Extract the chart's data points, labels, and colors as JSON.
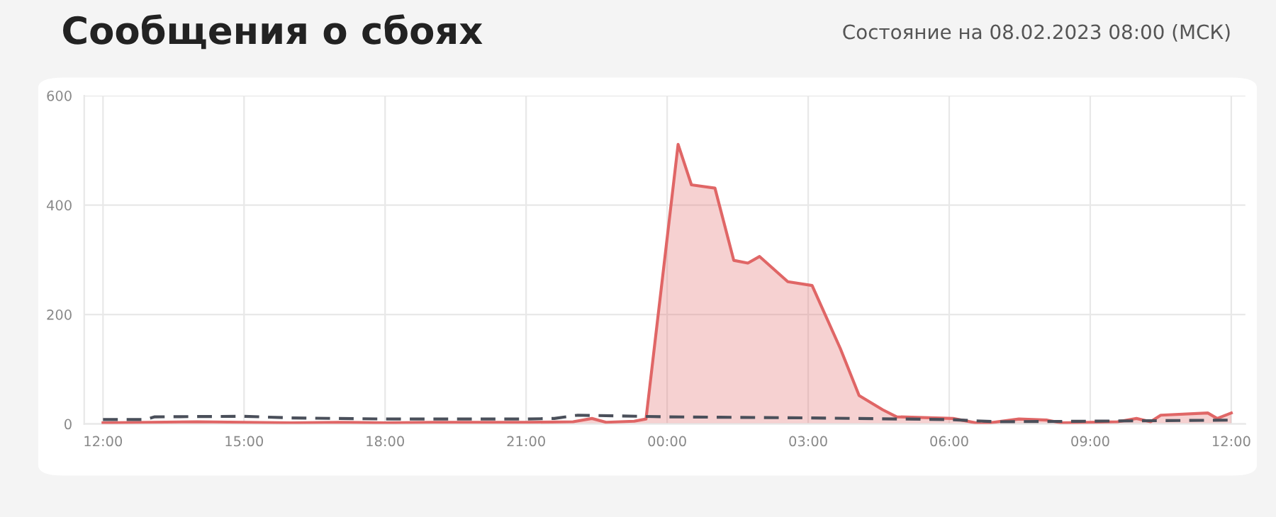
{
  "chart_data": {
    "type": "area",
    "title": "Сообщения о сбоях",
    "subtitle": "Состояние на 08.02.2023 08:00 (МСК)",
    "xlim": [
      "2023-02-07T11:36",
      "2023-02-08T12:18"
    ],
    "xticks": [
      {
        "value": "2023-02-07T12:00",
        "label": "12:00"
      },
      {
        "value": "2023-02-07T15:00",
        "label": "15:00"
      },
      {
        "value": "2023-02-07T18:00",
        "label": "18:00"
      },
      {
        "value": "2023-02-07T21:00",
        "label": "21:00"
      },
      {
        "value": "2023-02-08T00:00",
        "label": "00:00"
      },
      {
        "value": "2023-02-08T03:00",
        "label": "03:00"
      },
      {
        "value": "2023-02-08T06:00",
        "label": "06:00"
      },
      {
        "value": "2023-02-08T09:00",
        "label": "09:00"
      },
      {
        "value": "2023-02-08T12:00",
        "label": "12:00"
      }
    ],
    "ylim": [
      0,
      600
    ],
    "yticks": [
      0,
      200,
      400,
      600
    ],
    "grid": true,
    "series": [
      {
        "color": "#e06666",
        "line_style": "solid",
        "x": [
          "2023-02-07T12:00",
          "2023-02-07T13:00",
          "2023-02-07T14:00",
          "2023-02-07T15:00",
          "2023-02-07T16:00",
          "2023-02-07T17:00",
          "2023-02-07T18:00",
          "2023-02-07T19:00",
          "2023-02-07T20:00",
          "2023-02-07T21:00",
          "2023-02-07T22:00",
          "2023-02-07T22:24",
          "2023-02-07T22:42",
          "2023-02-07T23:18",
          "2023-02-07T23:33",
          "2023-02-08T00:14",
          "2023-02-08T00:31",
          "2023-02-08T01:01",
          "2023-02-08T01:25",
          "2023-02-08T01:43",
          "2023-02-08T01:58",
          "2023-02-08T02:34",
          "2023-02-08T03:05",
          "2023-02-08T03:41",
          "2023-02-08T04:05",
          "2023-02-08T04:35",
          "2023-02-08T04:53",
          "2023-02-08T06:05",
          "2023-02-08T06:41",
          "2023-02-08T07:29",
          "2023-02-08T08:05",
          "2023-02-08T08:23",
          "2023-02-08T09:35",
          "2023-02-08T09:59",
          "2023-02-08T10:17",
          "2023-02-08T10:30",
          "2023-02-08T11:30",
          "2023-02-08T11:42",
          "2023-02-08T12:00"
        ],
        "values": [
          2,
          3,
          4,
          3,
          2,
          3,
          2,
          3,
          3,
          3,
          4,
          10,
          3,
          5,
          9,
          511,
          437,
          431,
          299,
          294,
          306,
          260,
          253,
          138,
          52,
          26,
          13,
          10,
          0,
          9,
          7,
          2,
          4,
          10,
          4,
          16,
          20,
          10,
          20
        ]
      },
      {
        "type": "line",
        "color": "#4a4f5a",
        "line_style": "dashed",
        "x": [
          "2023-02-07T12:00",
          "2023-02-07T12:54",
          "2023-02-07T13:06",
          "2023-02-07T15:00",
          "2023-02-07T16:00",
          "2023-02-07T18:00",
          "2023-02-07T21:00",
          "2023-02-07T21:36",
          "2023-02-07T22:06",
          "2023-02-08T00:00",
          "2023-02-08T03:00",
          "2023-02-08T06:00",
          "2023-02-08T07:00",
          "2023-02-08T09:00",
          "2023-02-08T12:00"
        ],
        "values": [
          8,
          8,
          13,
          14,
          11,
          9,
          9,
          10,
          16,
          13,
          11,
          8,
          4,
          5,
          7
        ]
      }
    ]
  }
}
